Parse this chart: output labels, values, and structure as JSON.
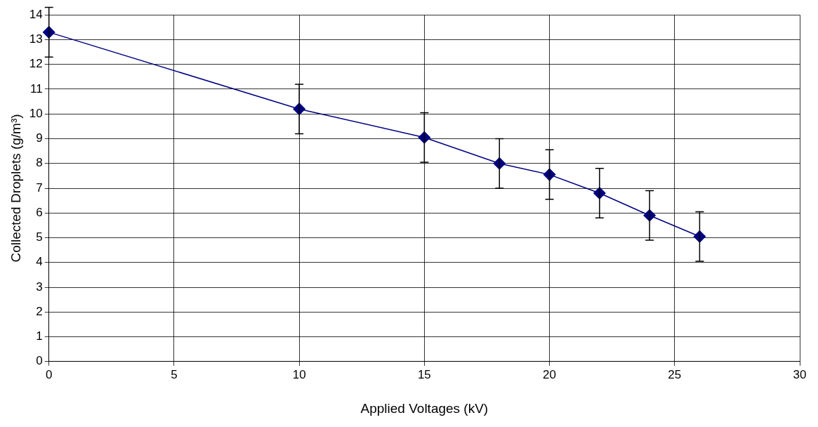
{
  "chart_data": {
    "type": "line",
    "xlabel": "Applied Voltages (kV)",
    "ylabel": "Collected Droplets (g/m³)",
    "x": [
      0,
      10,
      15,
      18,
      20,
      22,
      24,
      26
    ],
    "series": [
      {
        "color": "#000080",
        "values": [
          13.3,
          10.2,
          9.05,
          8.0,
          7.55,
          6.8,
          5.9,
          5.05
        ],
        "errors": [
          1,
          1,
          1,
          1,
          1,
          1,
          1,
          1
        ]
      }
    ],
    "xlim": [
      0,
      30
    ],
    "xticks": [
      0,
      5,
      10,
      15,
      20,
      25,
      30
    ],
    "ylim": [
      0,
      14
    ],
    "yticks": [
      0,
      1,
      2,
      3,
      4,
      5,
      6,
      7,
      8,
      9,
      10,
      11,
      12,
      13,
      14
    ],
    "grid": true,
    "legend": false,
    "marker": "diamond",
    "line_style": "solid"
  }
}
